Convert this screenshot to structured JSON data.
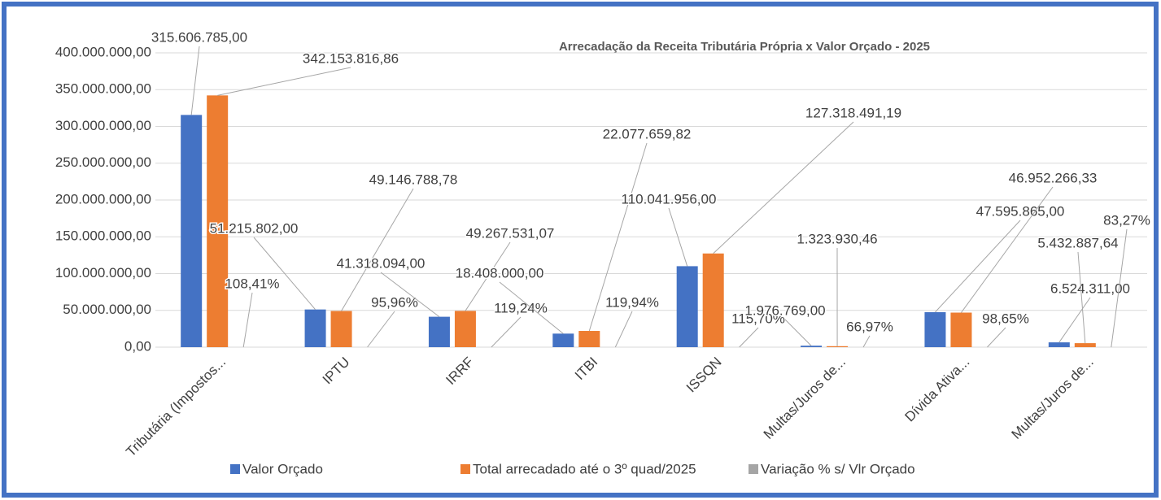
{
  "chart_data": {
    "type": "bar",
    "title": "Arrecadação da Receita Tributária Própria x Valor Orçado - 2025",
    "categories": [
      "Tributária (Impostos...",
      "IPTU",
      "IRRF",
      "ITBI",
      "ISSQN",
      "Multas/Juros de...",
      "Dívida Ativa...",
      "Multas/Juros de..."
    ],
    "series": [
      {
        "name": "Valor Orçado",
        "color": "#4472c4",
        "values": [
          315606785,
          51215802,
          41318094,
          18408000,
          110041956,
          1976769,
          47595865,
          6524311
        ],
        "value_labels": [
          "315.606.785,00",
          "51.215.802,00",
          "41.318.094,00",
          "18.408.000,00",
          "110.041.956,00",
          "1.976.769,00",
          "47.595.865,00",
          "6.524.311,00"
        ]
      },
      {
        "name": "Total arrecadado até o 3º quad/2025",
        "color": "#ed7d31",
        "values": [
          342153816.86,
          49146788.78,
          49267531.07,
          22077659.82,
          127318491.19,
          1323930.46,
          46952266.33,
          5432887.64
        ],
        "value_labels": [
          "342.153.816,86",
          "49.146.788,78",
          "49.267.531,07",
          "22.077.659,82",
          "127.318.491,19",
          "1.323.930,46",
          "46.952.266,33",
          "5.432.887,64"
        ]
      },
      {
        "name": "Variação % s/ Vlr Orçado",
        "color": "#a5a5a5",
        "values": [
          108.41,
          95.96,
          119.24,
          119.94,
          115.7,
          66.97,
          98.65,
          83.27
        ],
        "value_labels": [
          "108,41%",
          "95,96%",
          "119,24%",
          "119,94%",
          "115,70%",
          "66,97%",
          "98,65%",
          "83,27%"
        ]
      }
    ],
    "ylim": [
      0,
      400000000
    ],
    "yticks": [
      {
        "value": 0,
        "label": "0,00"
      },
      {
        "value": 50000000,
        "label": "50.000.000,00"
      },
      {
        "value": 100000000,
        "label": "100.000.000,00"
      },
      {
        "value": 150000000,
        "label": "150.000.000,00"
      },
      {
        "value": 200000000,
        "label": "200.000.000,00"
      },
      {
        "value": 250000000,
        "label": "250.000.000,00"
      },
      {
        "value": 300000000,
        "label": "300.000.000,00"
      },
      {
        "value": 350000000,
        "label": "350.000.000,00"
      },
      {
        "value": 400000000,
        "label": "400.000.000,00"
      }
    ],
    "grid": true,
    "legend": "bottom"
  }
}
